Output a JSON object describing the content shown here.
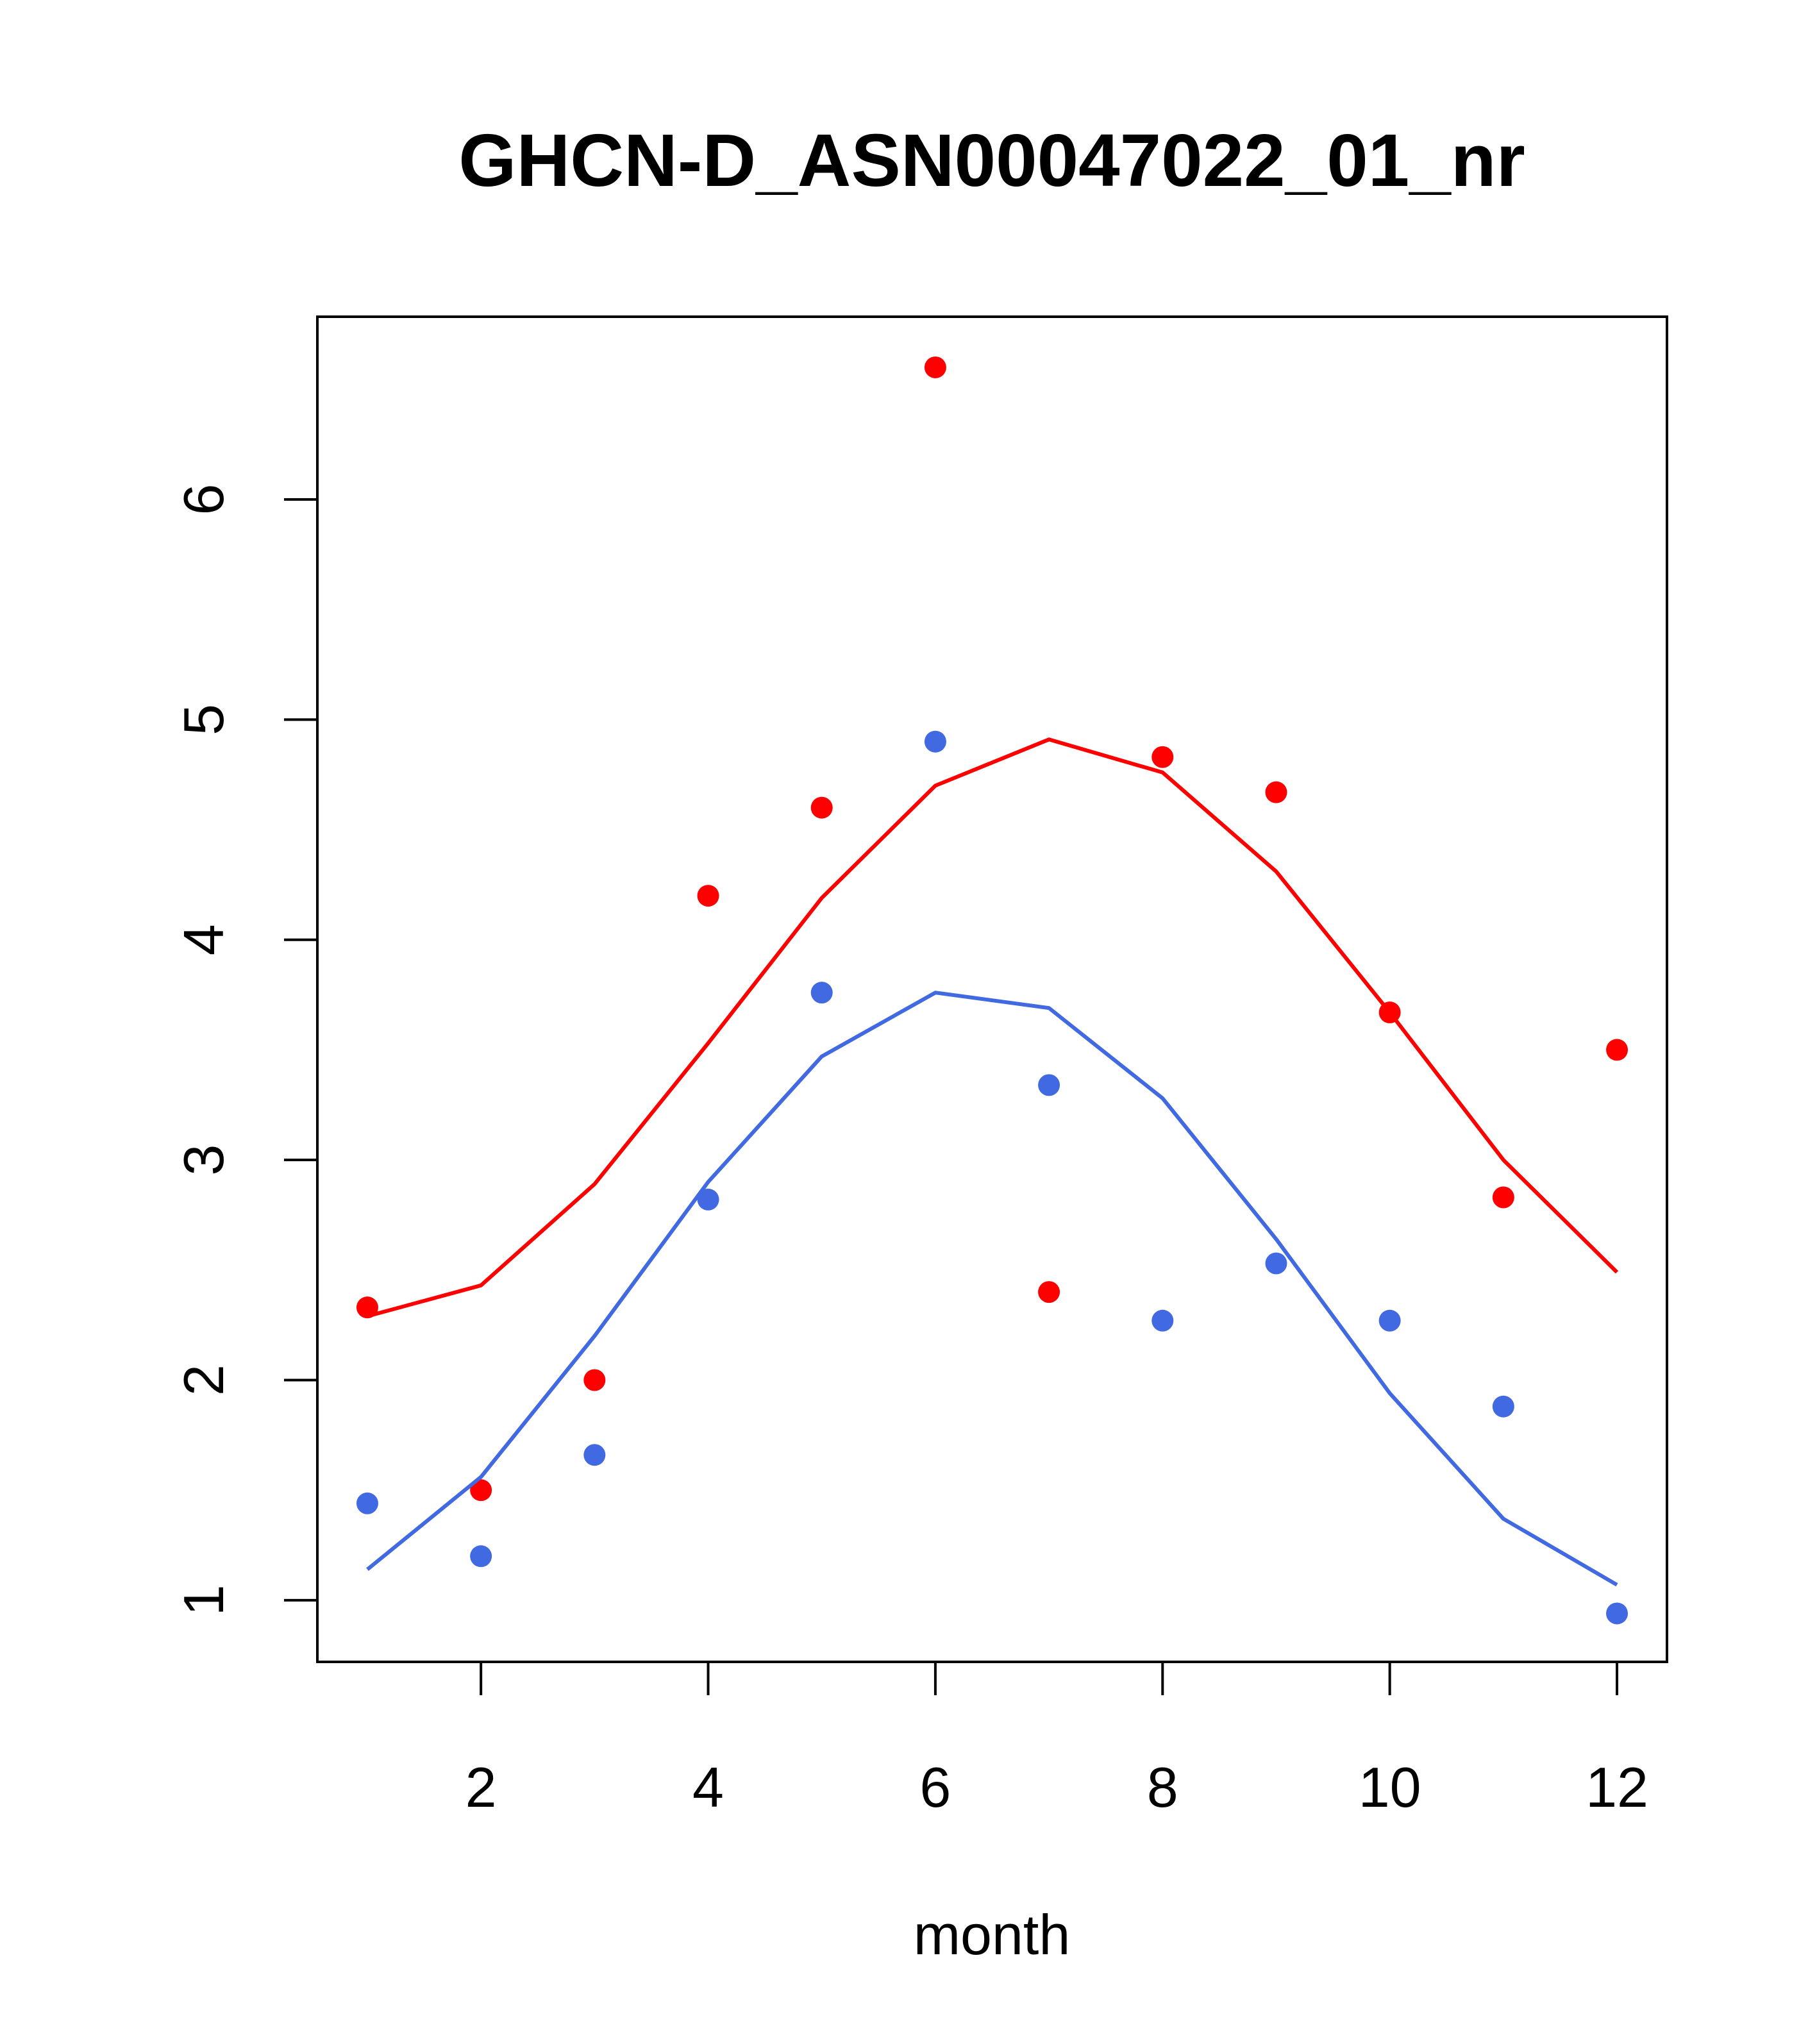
{
  "chart_data": {
    "type": "scatter",
    "title": "GHCN-D_ASN00047022_01_nr",
    "xlabel": "month",
    "ylabel": "",
    "xlim": [
      0.56,
      12.44
    ],
    "ylim": [
      0.72,
      6.83
    ],
    "x_ticks": [
      2,
      4,
      6,
      8,
      10,
      12
    ],
    "y_ticks": [
      1,
      2,
      3,
      4,
      5,
      6
    ],
    "grid": false,
    "series": [
      {
        "color": "#ff0000",
        "points_x": [
          1,
          2,
          3,
          4,
          5,
          6,
          7,
          8,
          9,
          10,
          11,
          12
        ],
        "points_y": [
          2.33,
          1.5,
          2.0,
          4.2,
          4.6,
          6.6,
          2.4,
          4.83,
          4.67,
          3.67,
          2.83,
          3.5
        ],
        "line_x": [
          1,
          2,
          3,
          4,
          5,
          6,
          7,
          8,
          9,
          10,
          11,
          12
        ],
        "line_y": [
          2.29,
          2.43,
          2.89,
          3.53,
          4.19,
          4.7,
          4.91,
          4.76,
          4.31,
          3.67,
          3.0,
          2.49
        ]
      },
      {
        "color": "#4169e1",
        "points_x": [
          1,
          2,
          3,
          4,
          5,
          6,
          7,
          8,
          9,
          10,
          11,
          12
        ],
        "points_y": [
          1.44,
          1.2,
          1.66,
          2.82,
          3.76,
          4.9,
          3.34,
          2.27,
          2.53,
          2.27,
          1.88,
          0.94
        ],
        "line_x": [
          1,
          2,
          3,
          4,
          5,
          6,
          7,
          8,
          9,
          10,
          11,
          12
        ],
        "line_y": [
          1.14,
          1.56,
          2.2,
          2.9,
          3.47,
          3.76,
          3.69,
          3.28,
          2.64,
          1.94,
          1.37,
          1.07
        ]
      }
    ]
  }
}
